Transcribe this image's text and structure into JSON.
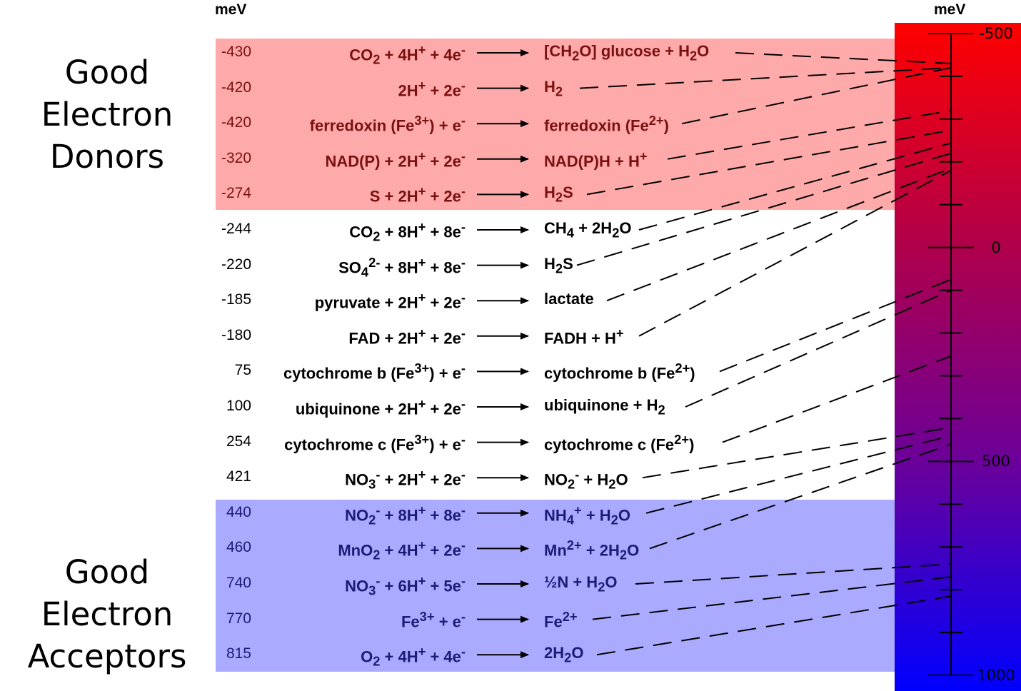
{
  "headers": {
    "left_unit": "meV",
    "right_unit": "meV"
  },
  "groups": {
    "donors": "Good Electron Donors",
    "acceptors": "Good Electron Acceptors"
  },
  "colors": {
    "donor_band": "#ffaaaa",
    "acceptor_band": "#aaaaff",
    "scale_top": "#ff0000",
    "scale_bottom": "#0000ff",
    "dash_line": "#000000"
  },
  "scale": {
    "min": -500,
    "max": 1000,
    "tick_step": 100,
    "labeled_ticks": [
      "-500",
      "0",
      "500",
      "1000"
    ]
  },
  "reactions": [
    {
      "mev": "-430",
      "value": -430,
      "group": "donor",
      "lhs": "CO<sub>2</sub> + 4H<sup>+</sup> + 4e<sup>-</sup>",
      "rhs": "[CH<sub>2</sub>O] glucose + H<sub>2</sub>O"
    },
    {
      "mev": "-420",
      "value": -420,
      "group": "donor",
      "lhs": "2H<sup>+</sup> + 2e<sup>-</sup>",
      "rhs": "H<sub>2</sub>"
    },
    {
      "mev": "-420",
      "value": -420,
      "group": "donor",
      "lhs": "ferredoxin (Fe<sup>3+</sup>) + e<sup>-</sup>",
      "rhs": "ferredoxin (Fe<sup>2+</sup>)"
    },
    {
      "mev": "-320",
      "value": -320,
      "group": "donor",
      "lhs": "NAD(P) + 2H<sup>+</sup> + 2e<sup>-</sup>",
      "rhs": "NAD(P)H + H<sup>+</sup>"
    },
    {
      "mev": "-274",
      "value": -274,
      "group": "donor",
      "lhs": "S + 2H<sup>+</sup> + 2e<sup>-</sup>",
      "rhs": "H<sub>2</sub>S"
    },
    {
      "mev": "-244",
      "value": -244,
      "group": "mid",
      "lhs": "CO<sub>2</sub> + 8H<sup>+</sup> + 8e<sup>-</sup>",
      "rhs": "CH<sub>4</sub> + 2H<sub>2</sub>O"
    },
    {
      "mev": "-220",
      "value": -220,
      "group": "mid",
      "lhs": "SO<sub>4</sub><sup>2-</sup> + 8H<sup>+</sup> + 8e<sup>-</sup>",
      "rhs": "H<sub>2</sub>S"
    },
    {
      "mev": "-185",
      "value": -185,
      "group": "mid",
      "lhs": "pyruvate + 2H<sup>+</sup> + 2e<sup>-</sup>",
      "rhs": "lactate"
    },
    {
      "mev": "-180",
      "value": -180,
      "group": "mid",
      "lhs": "FAD + 2H<sup>+</sup> + 2e<sup>-</sup>",
      "rhs": "FADH + H<sup>+</sup>"
    },
    {
      "mev": "75",
      "value": 75,
      "group": "mid",
      "lhs": "cytochrome b (Fe<sup>3+</sup>) + e<sup>-</sup>",
      "rhs": "cytochrome b (Fe<sup>2+</sup>)"
    },
    {
      "mev": "100",
      "value": 100,
      "group": "mid",
      "lhs": "ubiquinone + 2H<sup>+</sup> + 2e<sup>-</sup>",
      "rhs": "ubiquinone + H<sub>2</sub>"
    },
    {
      "mev": "254",
      "value": 254,
      "group": "mid",
      "lhs": "cytochrome c (Fe<sup>3+</sup>) + e<sup>-</sup>",
      "rhs": "cytochrome c (Fe<sup>2+</sup>)"
    },
    {
      "mev": "421",
      "value": 421,
      "group": "mid",
      "lhs": "NO<sub>3</sub><sup>-</sup> + 2H<sup>+</sup> + 2e<sup>-</sup>",
      "rhs": "NO<sub>2</sub><sup>-</sup> + H<sub>2</sub>O"
    },
    {
      "mev": "440",
      "value": 440,
      "group": "acc",
      "lhs": "NO<sub>2</sub><sup>-</sup> + 8H<sup>+</sup> + 8e<sup>-</sup>",
      "rhs": "NH<sub>4</sub><sup>+</sup> + H<sub>2</sub>O"
    },
    {
      "mev": "460",
      "value": 460,
      "group": "acc",
      "lhs": "MnO<sub>2</sub> + 4H<sup>+</sup> + 2e<sup>-</sup>",
      "rhs": "Mn<sup>2+</sup> + 2H<sub>2</sub>O"
    },
    {
      "mev": "740",
      "value": 740,
      "group": "acc",
      "lhs": "NO<sub>3</sub><sup>-</sup> + 6H<sup>+</sup> + 5e<sup>-</sup>",
      "rhs": "½N + H<sub>2</sub>O"
    },
    {
      "mev": "770",
      "value": 770,
      "group": "acc",
      "lhs": "Fe<sup>3+</sup> + e<sup>-</sup>",
      "rhs": "Fe<sup>2+</sup>"
    },
    {
      "mev": "815",
      "value": 815,
      "group": "acc",
      "lhs": "O<sub>2</sub> + 4H<sup>+</sup> + 4e<sup>-</sup>",
      "rhs": "2H<sub>2</sub>O"
    }
  ]
}
